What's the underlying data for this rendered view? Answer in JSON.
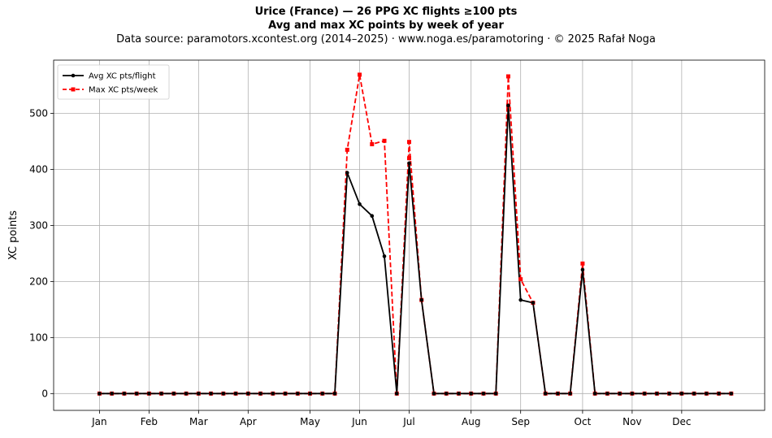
{
  "chart_data": {
    "type": "line",
    "title": "Urice (France)  —  26 PPG XC flights ≥100 pts",
    "subtitle": "Avg and max XC points by week of year",
    "source_note": "Data source: paramotors.xcontest.org (2014–2025)  ·  www.noga.es/paramotoring  ·  © 2025 Rafał Noga",
    "xlabel": "",
    "ylabel": "XC points",
    "x_ticks": [
      {
        "label": "Jan",
        "week": 1
      },
      {
        "label": "Feb",
        "week": 5
      },
      {
        "label": "Mar",
        "week": 9
      },
      {
        "label": "Apr",
        "week": 13
      },
      {
        "label": "May",
        "week": 18
      },
      {
        "label": "Jun",
        "week": 22
      },
      {
        "label": "Jul",
        "week": 26
      },
      {
        "label": "Aug",
        "week": 31
      },
      {
        "label": "Sep",
        "week": 35
      },
      {
        "label": "Oct",
        "week": 40
      },
      {
        "label": "Nov",
        "week": 44
      },
      {
        "label": "Dec",
        "week": 48
      }
    ],
    "y_ticks": [
      0,
      100,
      200,
      300,
      400,
      500
    ],
    "xlim": [
      -2.7,
      54.7
    ],
    "ylim": [
      -30,
      595
    ],
    "grid": true,
    "legend_position": "top-left",
    "series": [
      {
        "name": "Avg XC pts/flight",
        "color": "#000000",
        "line_style": "solid",
        "marker": "circle",
        "x": [
          1,
          2,
          3,
          4,
          5,
          6,
          7,
          8,
          9,
          10,
          11,
          12,
          13,
          14,
          15,
          16,
          17,
          18,
          19,
          20,
          21,
          22,
          23,
          24,
          25,
          26,
          27,
          28,
          29,
          30,
          31,
          32,
          33,
          34,
          35,
          36,
          37,
          38,
          39,
          40,
          41,
          42,
          43,
          44,
          45,
          46,
          47,
          48,
          49,
          50,
          51,
          52
        ],
        "values": [
          0,
          0,
          0,
          0,
          0,
          0,
          0,
          0,
          0,
          0,
          0,
          0,
          0,
          0,
          0,
          0,
          0,
          0,
          0,
          0,
          394,
          338,
          317,
          245,
          0,
          411,
          167,
          0,
          0,
          0,
          0,
          0,
          0,
          514,
          167,
          162,
          0,
          0,
          0,
          221,
          0,
          0,
          0,
          0,
          0,
          0,
          0,
          0,
          0,
          0,
          0,
          0
        ]
      },
      {
        "name": "Max XC pts/week",
        "color": "#ff0000",
        "line_style": "dashed",
        "marker": "square",
        "x": [
          1,
          2,
          3,
          4,
          5,
          6,
          7,
          8,
          9,
          10,
          11,
          12,
          13,
          14,
          15,
          16,
          17,
          18,
          19,
          20,
          21,
          22,
          23,
          24,
          25,
          26,
          27,
          28,
          29,
          30,
          31,
          32,
          33,
          34,
          35,
          36,
          37,
          38,
          39,
          40,
          41,
          42,
          43,
          44,
          45,
          46,
          47,
          48,
          49,
          50,
          51,
          52
        ],
        "values": [
          0,
          0,
          0,
          0,
          0,
          0,
          0,
          0,
          0,
          0,
          0,
          0,
          0,
          0,
          0,
          0,
          0,
          0,
          0,
          0,
          435,
          569,
          445,
          451,
          0,
          449,
          167,
          0,
          0,
          0,
          0,
          0,
          0,
          566,
          204,
          162,
          0,
          0,
          0,
          232,
          0,
          0,
          0,
          0,
          0,
          0,
          0,
          0,
          0,
          0,
          0,
          0
        ],
        "extra_points": [
          {
            "x": 26,
            "value": 420
          },
          {
            "x": 34,
            "value": 514
          }
        ]
      }
    ]
  }
}
